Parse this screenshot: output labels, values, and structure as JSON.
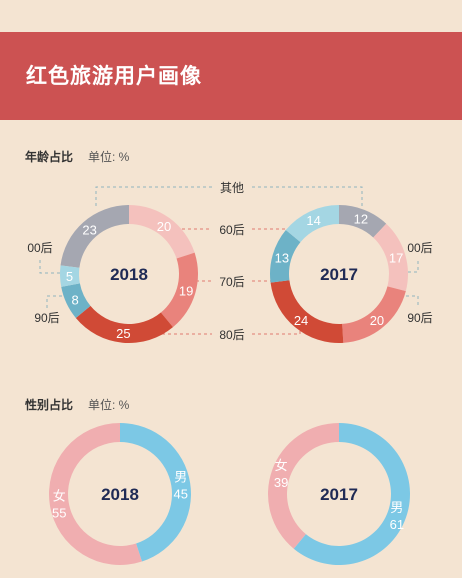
{
  "header": {
    "title": "红色旅游用户画像"
  },
  "age_section": {
    "title": "年龄占比",
    "unit": "单位: %"
  },
  "gender_section": {
    "title": "性别占比",
    "unit": "单位: %"
  },
  "colors": {
    "banner": "#cc5252",
    "background": "#f4e4d2",
    "其他": "#a5a7b1",
    "60后": "#f4c1bd",
    "70后": "#e9837c",
    "80后": "#d04a36",
    "90后": "#6db2c7",
    "00后": "#a4d6e3",
    "男": "#7cc8e5",
    "女": "#f0aeb0"
  },
  "chart_data": [
    {
      "type": "pie",
      "title": "年龄占比",
      "unit": "%",
      "categories": [
        "其他",
        "60后",
        "70后",
        "80后",
        "90后",
        "00后"
      ],
      "series": [
        {
          "name": "2018",
          "values": [
            23,
            20,
            19,
            25,
            8,
            5
          ]
        },
        {
          "name": "2017",
          "values": [
            12,
            17,
            20,
            24,
            13,
            14
          ]
        }
      ]
    },
    {
      "type": "pie",
      "title": "性别占比",
      "unit": "%",
      "categories": [
        "女",
        "男"
      ],
      "series": [
        {
          "name": "2018",
          "values": [
            55,
            45
          ]
        },
        {
          "name": "2017",
          "values": [
            39,
            61
          ]
        }
      ]
    }
  ]
}
